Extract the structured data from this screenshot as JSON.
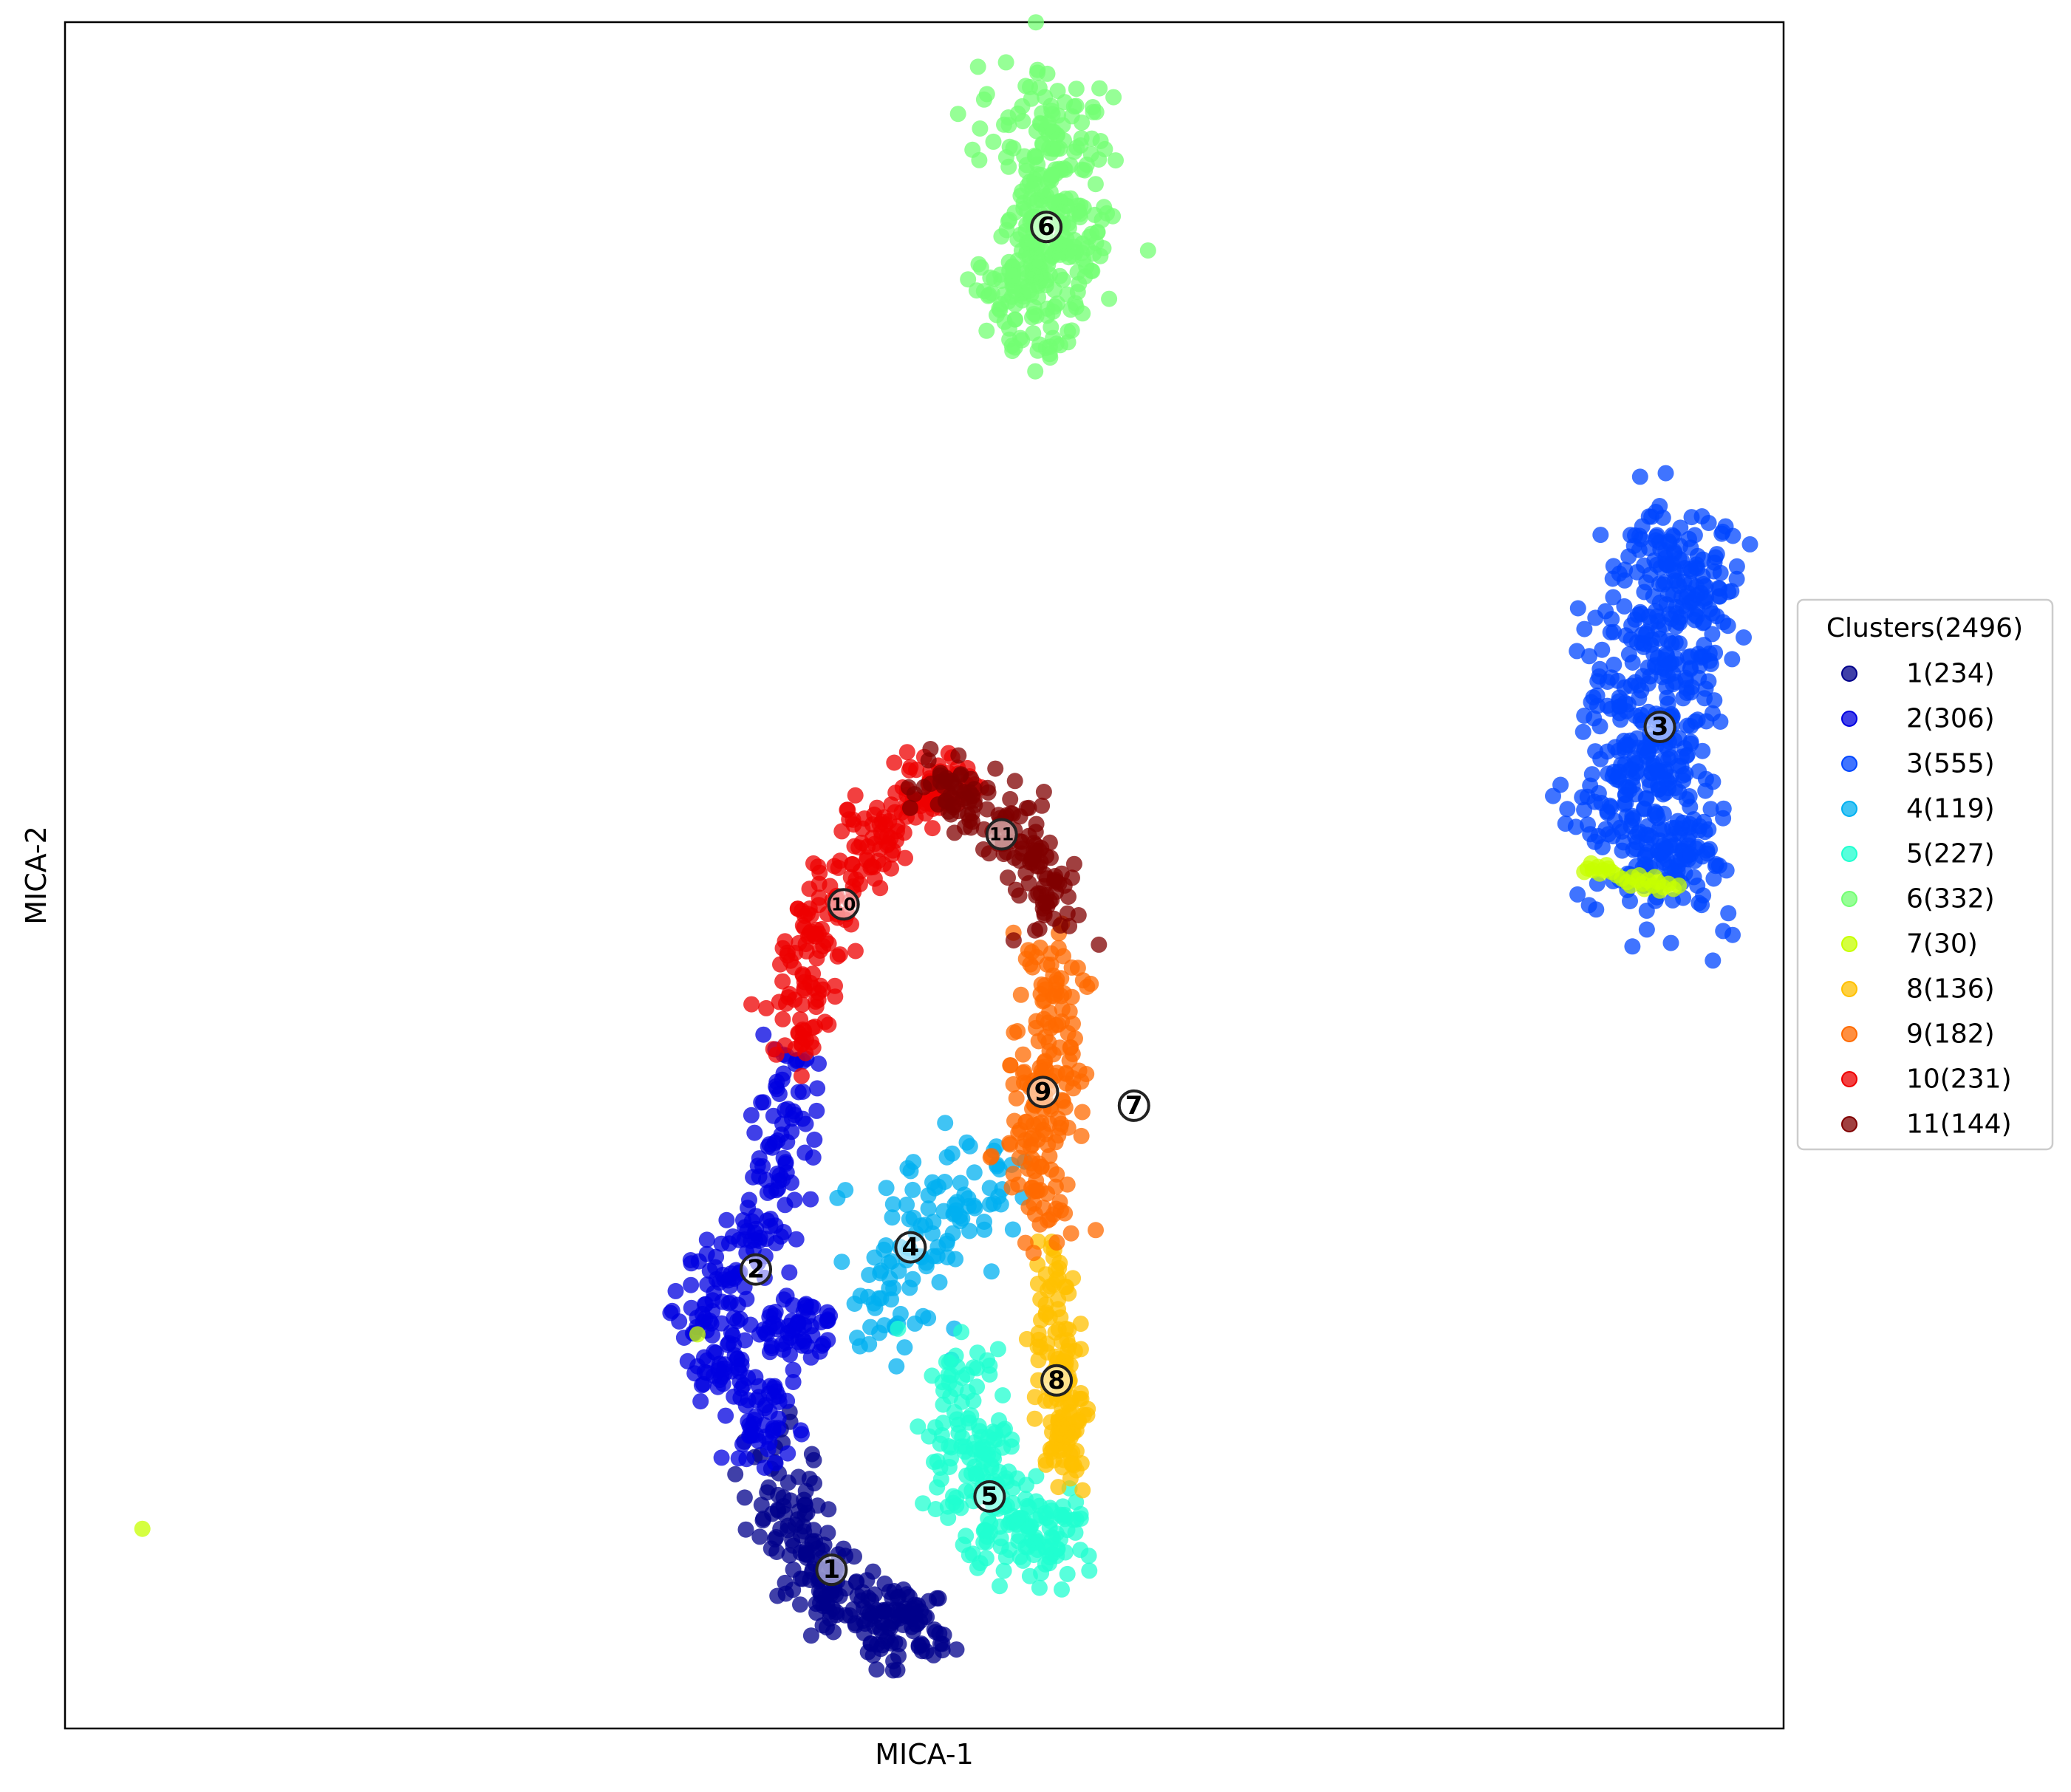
{
  "chart_data": {
    "type": "scatter",
    "xlabel": "MICA-1",
    "ylabel": "MICA-2",
    "grid": false,
    "ticks": "none",
    "legend": {
      "title": "Clusters(2496)",
      "placement": "right-center",
      "entries": [
        {
          "label": "1(234)",
          "color": "#00008b"
        },
        {
          "label": "2(306)",
          "color": "#0000e0"
        },
        {
          "label": "3(555)",
          "color": "#0046ff"
        },
        {
          "label": "4(119)",
          "color": "#00b0f0"
        },
        {
          "label": "5(227)",
          "color": "#20ffd0"
        },
        {
          "label": "6(332)",
          "color": "#73ff73"
        },
        {
          "label": "7(30)",
          "color": "#c7ff00"
        },
        {
          "label": "8(136)",
          "color": "#ffc000"
        },
        {
          "label": "9(182)",
          "color": "#ff6a00"
        },
        {
          "label": "10(231)",
          "color": "#ee0000"
        },
        {
          "label": "11(144)",
          "color": "#800000"
        }
      ]
    },
    "xlim": [
      0,
      1
    ],
    "ylim": [
      0,
      1
    ],
    "clusters": [
      {
        "id": "1",
        "color": "#00008b",
        "size": 234,
        "center": [
          0.446,
          0.093
        ],
        "path": [
          [
            0.41,
            0.165
          ],
          [
            0.422,
            0.12
          ],
          [
            0.438,
            0.09
          ],
          [
            0.462,
            0.07
          ],
          [
            0.488,
            0.058
          ],
          [
            0.497,
            0.06
          ]
        ],
        "spread": 0.012
      },
      {
        "id": "2",
        "color": "#0000e0",
        "size": 306,
        "center": [
          0.402,
          0.269
        ],
        "path": [
          [
            0.425,
            0.395
          ],
          [
            0.418,
            0.335
          ],
          [
            0.398,
            0.285
          ],
          [
            0.37,
            0.24
          ],
          [
            0.392,
            0.205
          ],
          [
            0.408,
            0.17
          ]
        ],
        "spread": 0.011,
        "blob": {
          "center": [
            0.425,
            0.235
          ],
          "rx": 0.022,
          "ry": 0.02,
          "frac": 0.18
        }
      },
      {
        "id": "3",
        "color": "#0046ff",
        "size": 555,
        "center": [
          0.928,
          0.587
        ],
        "path": [
          [
            0.938,
            0.7
          ],
          [
            0.932,
            0.65
          ],
          [
            0.922,
            0.59
          ],
          [
            0.918,
            0.54
          ],
          [
            0.935,
            0.5
          ]
        ],
        "spread": 0.02
      },
      {
        "id": "4",
        "color": "#00b0f0",
        "size": 119,
        "center": [
          0.492,
          0.282
        ],
        "path": [
          [
            0.535,
            0.325
          ],
          [
            0.51,
            0.295
          ],
          [
            0.488,
            0.265
          ],
          [
            0.47,
            0.235
          ]
        ],
        "spread": 0.018
      },
      {
        "id": "5",
        "color": "#20ffd0",
        "size": 227,
        "center": [
          0.538,
          0.136
        ],
        "path": [
          [
            0.518,
            0.215
          ],
          [
            0.53,
            0.16
          ],
          [
            0.54,
            0.125
          ],
          [
            0.56,
            0.1
          ],
          [
            0.575,
            0.13
          ]
        ],
        "spread": 0.013
      },
      {
        "id": "6",
        "color": "#73ff73",
        "size": 332,
        "center": [
          0.571,
          0.88
        ],
        "path": [
          [
            0.569,
            0.96
          ],
          [
            0.574,
            0.91
          ],
          [
            0.578,
            0.87
          ],
          [
            0.565,
            0.845
          ],
          [
            0.56,
            0.83
          ]
        ],
        "spread": 0.016
      },
      {
        "id": "7",
        "color": "#c7ff00",
        "size": 30,
        "center": [
          0.622,
          0.365
        ],
        "groups": [
          {
            "points": [
              [
                0.886,
                0.504
              ],
              [
                0.889,
                0.503
              ],
              [
                0.892,
                0.505
              ],
              [
                0.895,
                0.503
              ],
              [
                0.898,
                0.504
              ],
              [
                0.9,
                0.502
              ],
              [
                0.888,
                0.507
              ],
              [
                0.893,
                0.501
              ],
              [
                0.897,
                0.506
              ],
              [
                0.884,
                0.502
              ],
              [
                0.906,
                0.498
              ],
              [
                0.909,
                0.496
              ],
              [
                0.912,
                0.499
              ],
              [
                0.915,
                0.497
              ],
              [
                0.918,
                0.495
              ],
              [
                0.921,
                0.497
              ],
              [
                0.924,
                0.494
              ],
              [
                0.927,
                0.496
              ],
              [
                0.93,
                0.493
              ],
              [
                0.933,
                0.495
              ],
              [
                0.911,
                0.494
              ],
              [
                0.919,
                0.492
              ],
              [
                0.925,
                0.499
              ],
              [
                0.936,
                0.492
              ],
              [
                0.939,
                0.494
              ],
              [
                0.916,
                0.5
              ],
              [
                0.928,
                0.491
              ],
              [
                0.903,
                0.5
              ]
            ]
          },
          {
            "points": [
              [
                0.368,
                0.231
              ],
              [
                0.045,
                0.117
              ]
            ]
          }
        ]
      },
      {
        "id": "8",
        "color": "#ffc000",
        "size": 136,
        "center": [
          0.577,
          0.204
        ],
        "path": [
          [
            0.573,
            0.275
          ],
          [
            0.578,
            0.225
          ],
          [
            0.582,
            0.185
          ],
          [
            0.58,
            0.15
          ]
        ],
        "spread": 0.007
      },
      {
        "id": "9",
        "color": "#ff6a00",
        "size": 182,
        "center": [
          0.569,
          0.373
        ],
        "path": [
          [
            0.575,
            0.46
          ],
          [
            0.572,
            0.41
          ],
          [
            0.568,
            0.37
          ],
          [
            0.57,
            0.335
          ],
          [
            0.566,
            0.29
          ]
        ],
        "spread": 0.01
      },
      {
        "id": "10",
        "color": "#ee0000",
        "size": 231,
        "center": [
          0.453,
          0.483
        ],
        "path": [
          [
            0.426,
            0.395
          ],
          [
            0.432,
            0.445
          ],
          [
            0.446,
            0.49
          ],
          [
            0.47,
            0.525
          ],
          [
            0.5,
            0.55
          ],
          [
            0.518,
            0.555
          ]
        ],
        "spread": 0.01
      },
      {
        "id": "11",
        "color": "#800000",
        "size": 144,
        "center": [
          0.545,
          0.524
        ],
        "path": [
          [
            0.505,
            0.553
          ],
          [
            0.53,
            0.545
          ],
          [
            0.555,
            0.525
          ],
          [
            0.572,
            0.5
          ],
          [
            0.575,
            0.475
          ]
        ],
        "spread": 0.01
      }
    ]
  }
}
